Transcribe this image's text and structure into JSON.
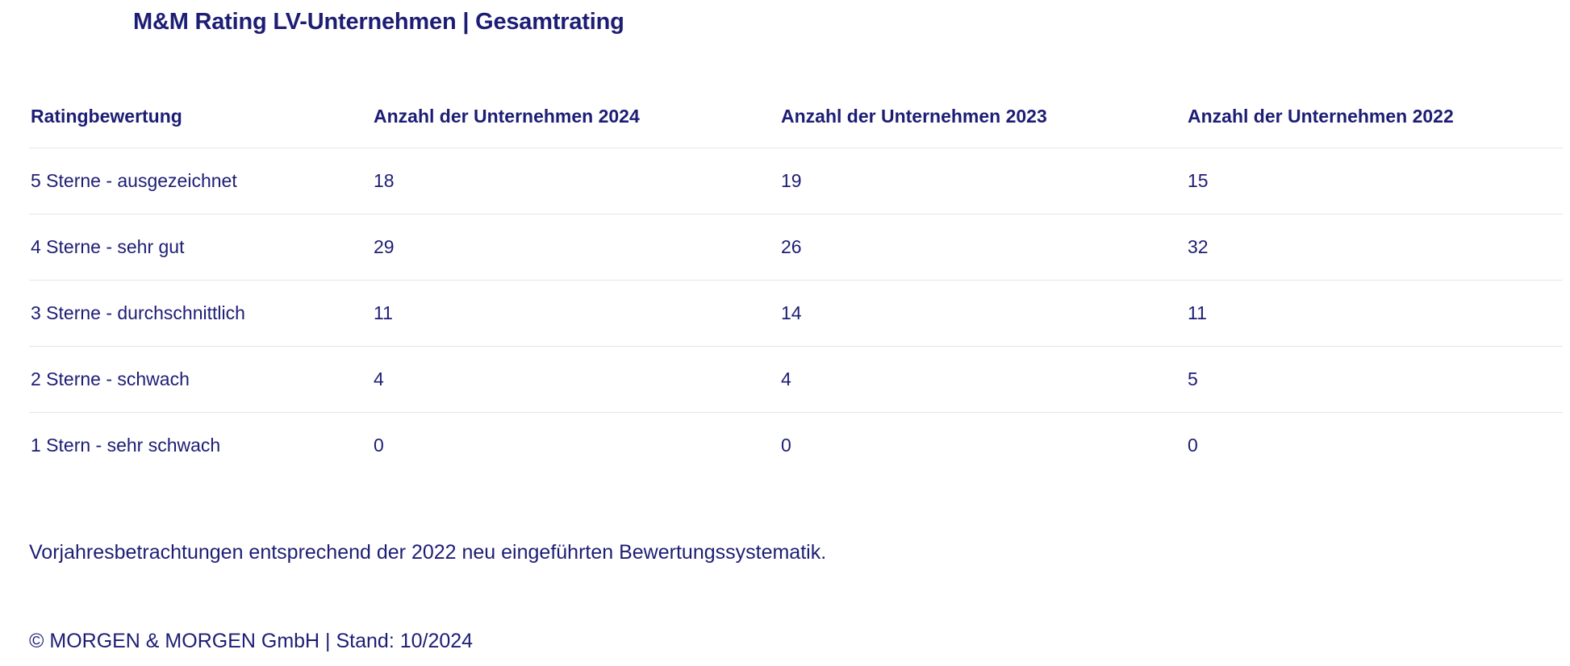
{
  "title": "M&M Rating LV-Unternehmen | Gesamtrating",
  "table": {
    "headers": {
      "rating": "Ratingbewertung",
      "y2024": "Anzahl der Unternehmen 2024",
      "y2023": "Anzahl der Unternehmen 2023",
      "y2022": "Anzahl der Unternehmen 2022"
    },
    "rows": [
      {
        "label": "5 Sterne - ausgezeichnet",
        "y2024": "18",
        "y2023": "19",
        "y2022": "15"
      },
      {
        "label": "4 Sterne - sehr gut",
        "y2024": "29",
        "y2023": "26",
        "y2022": "32"
      },
      {
        "label": "3 Sterne - durchschnittlich",
        "y2024": "11",
        "y2023": "14",
        "y2022": "11"
      },
      {
        "label": "2 Sterne - schwach",
        "y2024": "4",
        "y2023": "4",
        "y2022": "5"
      },
      {
        "label": "1 Stern - sehr schwach",
        "y2024": "0",
        "y2023": "0",
        "y2022": "0"
      }
    ]
  },
  "note": "Vorjahresbetrachtungen entsprechend der 2022 neu eingeführten Bewertungssystematik.",
  "footer": "© MORGEN & MORGEN GmbH | Stand: 10/2024",
  "colors": {
    "text": "#1d1d75",
    "divider": "#e3e6ec",
    "background": "#ffffff"
  },
  "chart_data": {
    "type": "table",
    "title": "M&M Rating LV-Unternehmen | Gesamtrating",
    "categories": [
      "5 Sterne - ausgezeichnet",
      "4 Sterne - sehr gut",
      "3 Sterne - durchschnittlich",
      "2 Sterne - schwach",
      "1 Stern - sehr schwach"
    ],
    "series": [
      {
        "name": "Anzahl der Unternehmen 2024",
        "values": [
          18,
          29,
          11,
          4,
          0
        ]
      },
      {
        "name": "Anzahl der Unternehmen 2023",
        "values": [
          19,
          26,
          14,
          4,
          0
        ]
      },
      {
        "name": "Anzahl der Unternehmen 2022",
        "values": [
          15,
          32,
          11,
          5,
          0
        ]
      }
    ],
    "note": "Vorjahresbetrachtungen entsprechend der 2022 neu eingeführten Bewertungssystematik.",
    "footer": "© MORGEN & MORGEN GmbH | Stand: 10/2024"
  }
}
